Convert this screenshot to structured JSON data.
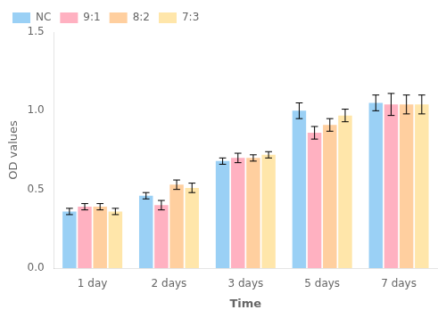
{
  "chart_data": {
    "type": "bar",
    "categories": [
      "1 day",
      "2 days",
      "3 days",
      "5 days",
      "7 days"
    ],
    "series": [
      {
        "name": "NC",
        "values": [
          0.36,
          0.46,
          0.68,
          1.0,
          1.05
        ],
        "errors": [
          0.02,
          0.02,
          0.02,
          0.05,
          0.05
        ]
      },
      {
        "name": "9:1",
        "values": [
          0.39,
          0.4,
          0.7,
          0.86,
          1.04
        ],
        "errors": [
          0.02,
          0.03,
          0.03,
          0.04,
          0.07
        ]
      },
      {
        "name": "8:2",
        "values": [
          0.39,
          0.53,
          0.7,
          0.91,
          1.04
        ],
        "errors": [
          0.02,
          0.03,
          0.02,
          0.04,
          0.06
        ]
      },
      {
        "name": "7:3",
        "values": [
          0.36,
          0.51,
          0.72,
          0.97,
          1.04
        ],
        "errors": [
          0.02,
          0.03,
          0.02,
          0.04,
          0.06
        ]
      }
    ],
    "xlabel": "Time",
    "ylabel": "OD values",
    "ylim": [
      0.0,
      1.5
    ],
    "yticks": [
      {
        "value": 0.0,
        "label": "0.0"
      },
      0.5,
      {
        "value": 1.0,
        "label": "1.0"
      },
      1.5
    ],
    "legend": "upper left",
    "grid": false
  }
}
